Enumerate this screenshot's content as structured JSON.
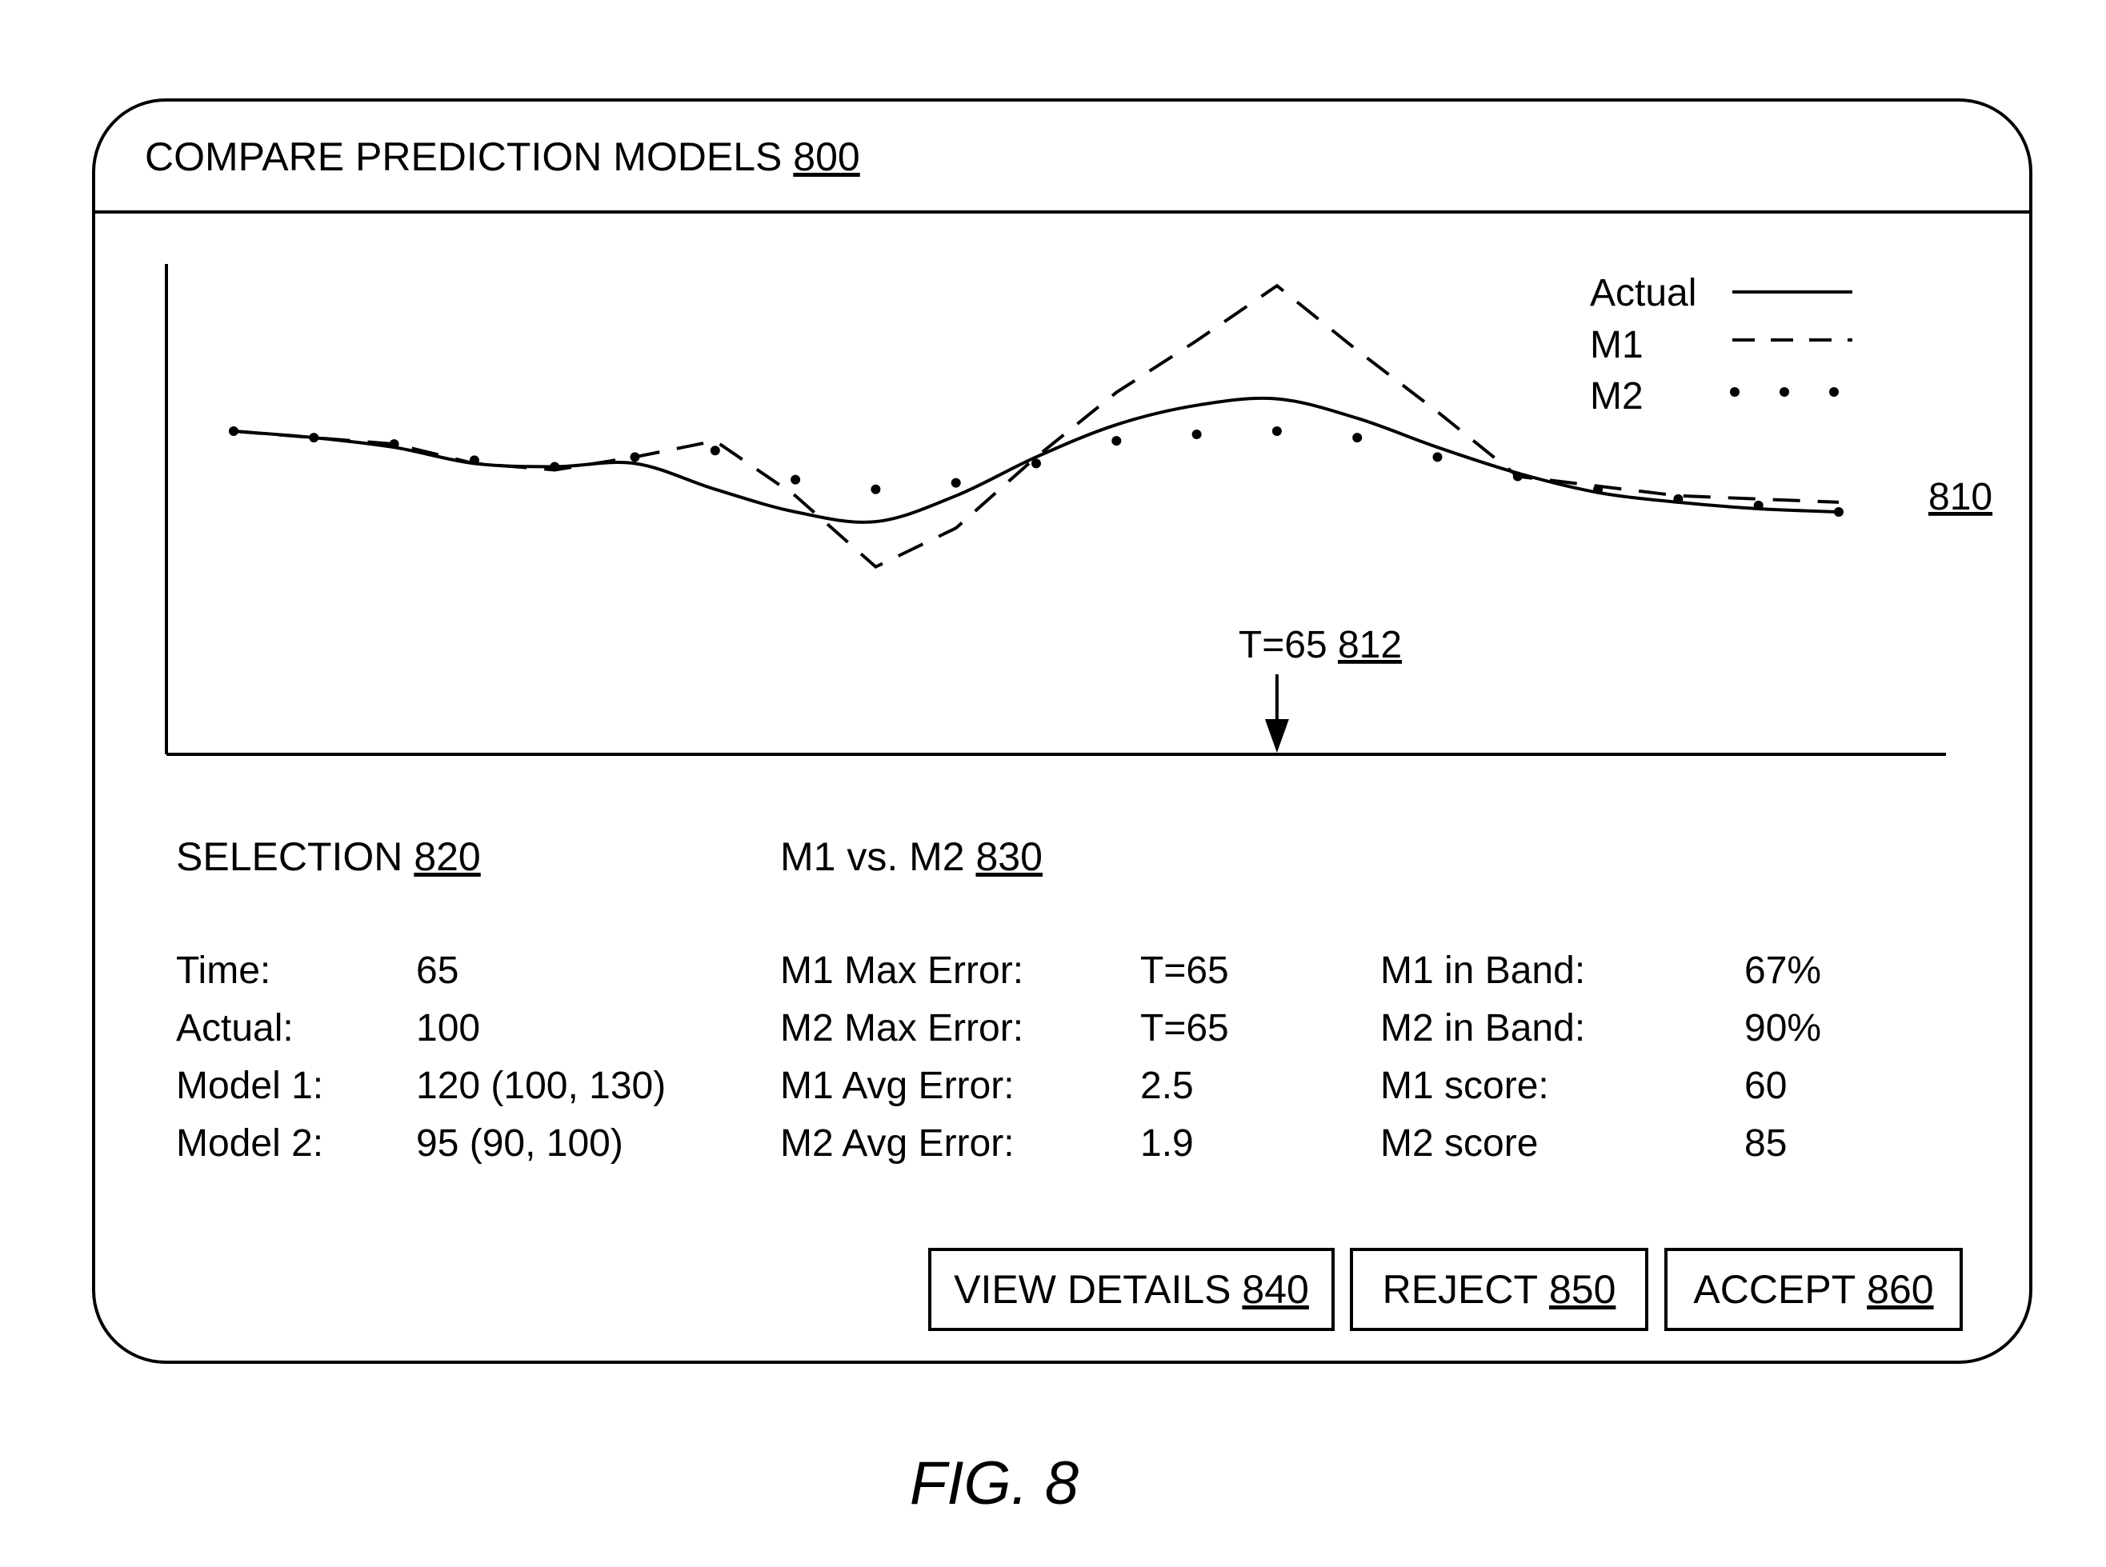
{
  "window": {
    "title": "COMPARE PREDICTION MODELS",
    "ref": "800"
  },
  "chart_ref": "810",
  "marker": {
    "label": "T=65",
    "ref": "812",
    "time": 65
  },
  "legend": {
    "actual": "Actual",
    "m1": "M1",
    "m2": "M2"
  },
  "chart_data": {
    "type": "line",
    "x": [
      0,
      5,
      10,
      15,
      20,
      25,
      30,
      35,
      40,
      45,
      50,
      55,
      60,
      65,
      70,
      75,
      80,
      85,
      90,
      95,
      100
    ],
    "series": [
      {
        "name": "Actual",
        "style": "solid",
        "values": [
          100,
          98,
          95,
          90,
          89,
          90,
          82,
          75,
          72,
          80,
          92,
          102,
          108,
          110,
          104,
          95,
          87,
          81,
          78,
          76,
          75
        ]
      },
      {
        "name": "M1",
        "style": "dashed",
        "values": [
          100,
          98,
          96,
          90,
          88,
          92,
          97,
          80,
          58,
          70,
          92,
          112,
          128,
          145,
          125,
          106,
          86,
          83,
          80,
          79,
          78
        ]
      },
      {
        "name": "M2",
        "style": "dotted",
        "values": [
          100,
          98,
          96,
          91,
          89,
          92,
          94,
          85,
          82,
          84,
          90,
          97,
          99,
          100,
          98,
          92,
          86,
          82,
          79,
          77,
          75
        ]
      }
    ]
  },
  "selection": {
    "title": "SELECTION",
    "ref": "820",
    "rows": [
      {
        "label": "Time:",
        "value": "65"
      },
      {
        "label": "Actual:",
        "value": "100"
      },
      {
        "label": "Model 1:",
        "value": "120 (100, 130)"
      },
      {
        "label": "Model 2:",
        "value": "95 (90, 100)"
      }
    ]
  },
  "comparison": {
    "title": "M1 vs. M2",
    "ref": "830",
    "left": [
      {
        "label": "M1 Max Error:",
        "value": "T=65"
      },
      {
        "label": "M2 Max Error:",
        "value": "T=65"
      },
      {
        "label": "M1 Avg Error:",
        "value": "2.5"
      },
      {
        "label": "M2 Avg Error:",
        "value": "1.9"
      }
    ],
    "right": [
      {
        "label": "M1 in Band:",
        "value": "67%"
      },
      {
        "label": "M2 in Band:",
        "value": "90%"
      },
      {
        "label": "M1 score:",
        "value": "60"
      },
      {
        "label": "M2 score",
        "value": "85"
      }
    ]
  },
  "buttons": {
    "view_details": {
      "label": "VIEW DETAILS",
      "ref": "840"
    },
    "reject": {
      "label": "REJECT",
      "ref": "850"
    },
    "accept": {
      "label": "ACCEPT",
      "ref": "860"
    }
  },
  "figure_caption": "FIG. 8"
}
